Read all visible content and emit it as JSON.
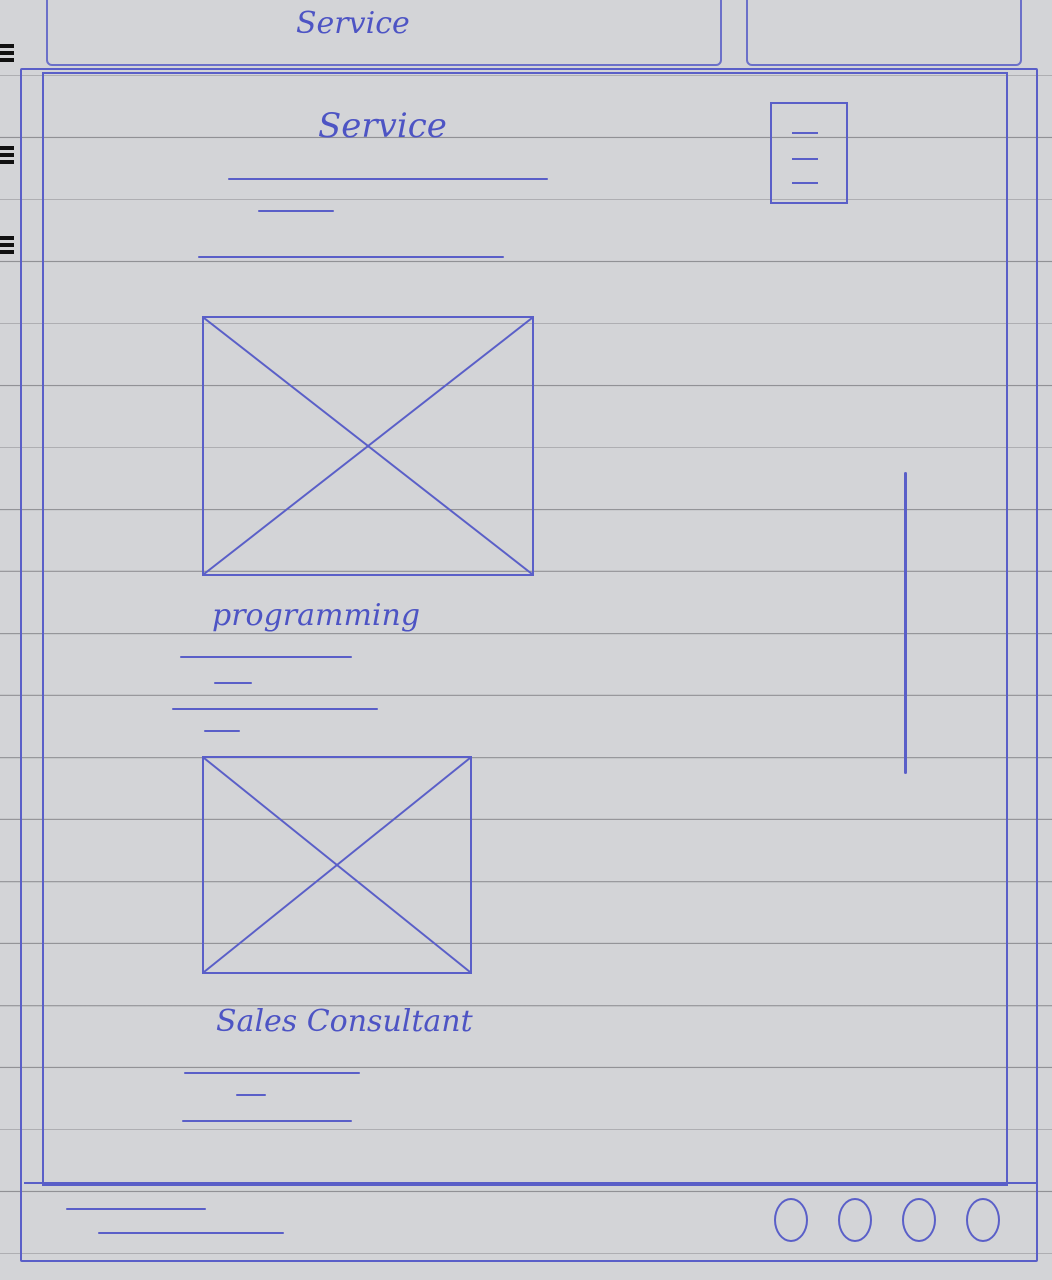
{
  "header": {
    "tab_title": "Service"
  },
  "page": {
    "title": "Service",
    "menu_icon": "hamburger-menu-icon"
  },
  "items": [
    {
      "image_icon": "image-placeholder-icon",
      "label": "programming"
    },
    {
      "image_icon": "image-placeholder-icon",
      "label": "Sales Consultant"
    }
  ],
  "footer": {
    "social_icons": [
      "circle-icon",
      "circle-icon",
      "circle-icon",
      "circle-icon"
    ]
  },
  "colors": {
    "pen": "#5a5fc8",
    "paper": "#d3d4d7",
    "rule_line": "#5a5a5f"
  }
}
